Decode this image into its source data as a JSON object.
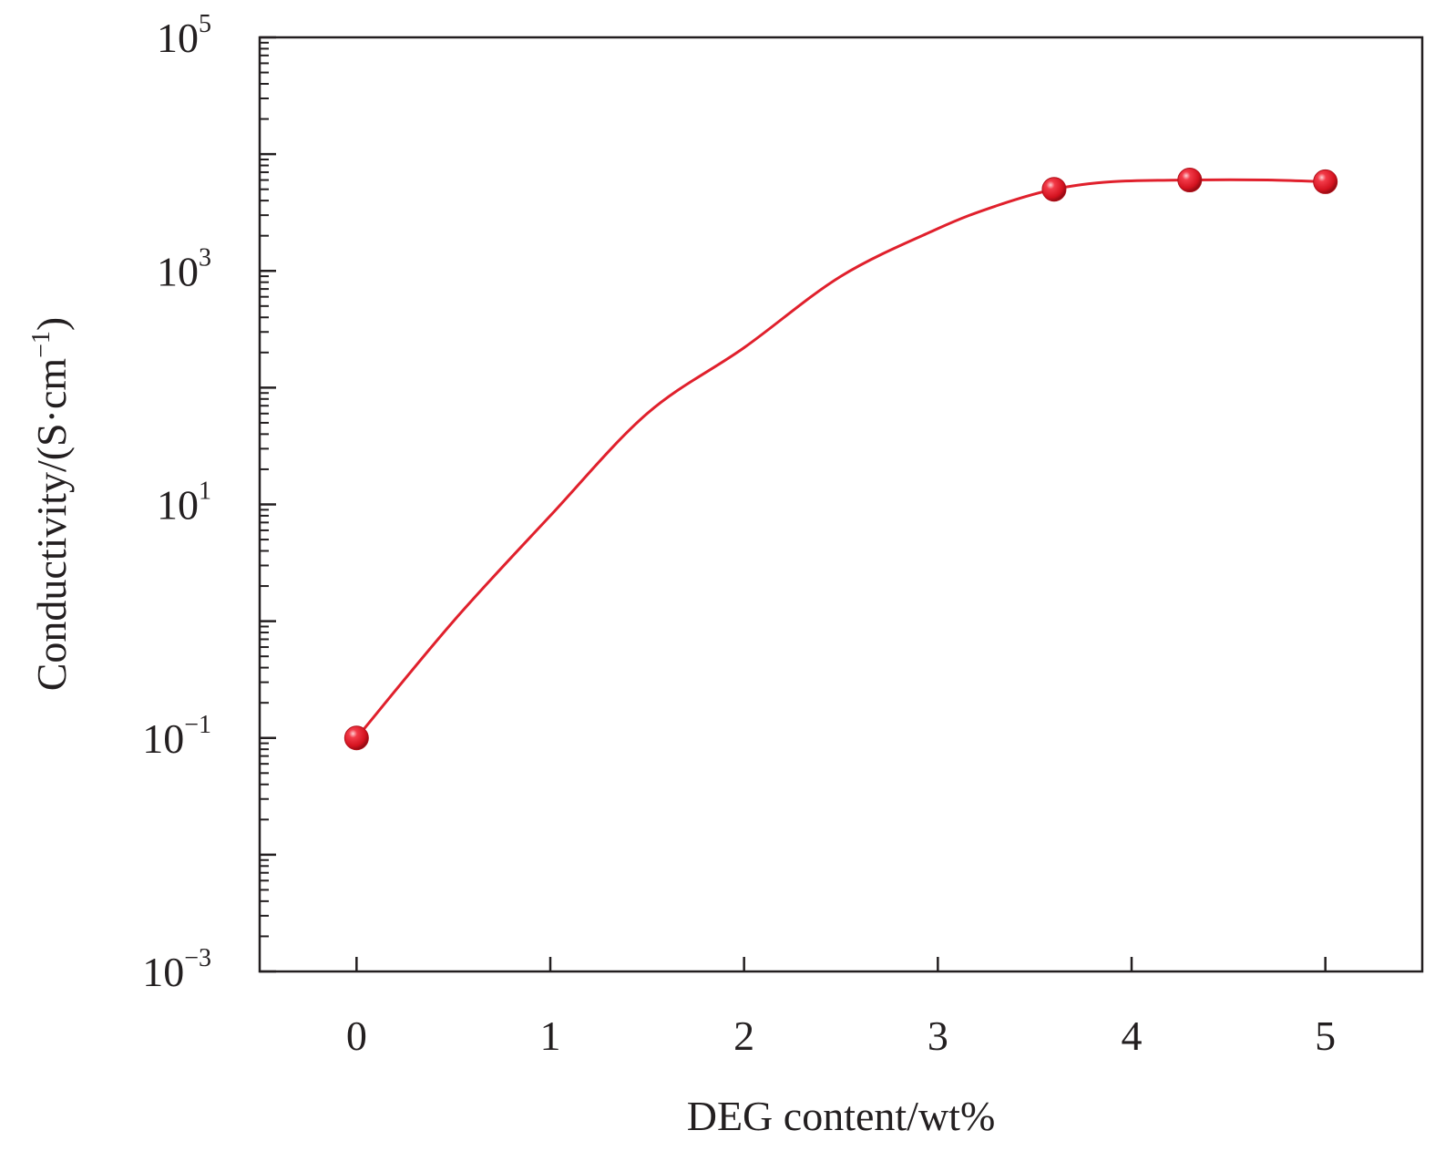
{
  "chart_data": {
    "type": "line",
    "title": "",
    "xlabel": "DEG content/wt%",
    "ylabel": "Conductivity/(S·cm",
    "ylabel_exp": "−1",
    "ylabel_tail": ")",
    "xlim": [
      -0.5,
      5.5
    ],
    "ylim": [
      0.001,
      100000
    ],
    "yscale": "log",
    "grid": false,
    "x_ticks": [
      {
        "value": 0,
        "label": "0"
      },
      {
        "value": 1,
        "label": "1"
      },
      {
        "value": 2,
        "label": "2"
      },
      {
        "value": 3,
        "label": "3"
      },
      {
        "value": 4,
        "label": "4"
      },
      {
        "value": 5,
        "label": "5"
      }
    ],
    "y_ticks": [
      {
        "value": 0.001,
        "base": "10",
        "exp": "−3"
      },
      {
        "value": 0.1,
        "base": "10",
        "exp": "−1"
      },
      {
        "value": 10,
        "base": "10",
        "exp": "1"
      },
      {
        "value": 1000,
        "base": "10",
        "exp": "3"
      },
      {
        "value": 100000,
        "base": "10",
        "exp": "5"
      }
    ],
    "series": [
      {
        "color": "#e0202c",
        "marker": "sphere",
        "smooth": true,
        "x": [
          0,
          3.6,
          4.3,
          5.0
        ],
        "y": [
          0.1,
          5000,
          6000,
          5800
        ]
      }
    ],
    "curve": {
      "x": [
        0,
        0.5,
        1.0,
        1.5,
        2.0,
        2.5,
        3.0,
        3.3,
        3.6,
        3.9,
        4.3,
        4.7,
        5.0
      ],
      "y": [
        0.1,
        1.0,
        8.0,
        60,
        220,
        900,
        2300,
        3600,
        5000,
        5800,
        6000,
        6000,
        5800
      ]
    }
  }
}
